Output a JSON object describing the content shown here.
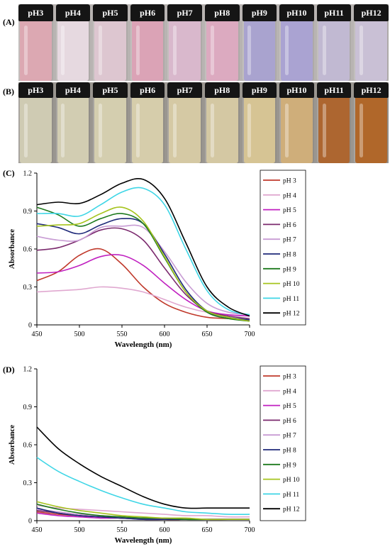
{
  "panels": {
    "a": "(A)",
    "b": "(B)",
    "c": "(C)",
    "d": "(D)"
  },
  "vials_a": [
    {
      "label": "pH3",
      "color": "#dca8b2"
    },
    {
      "label": "pH4",
      "color": "#e6d9e0"
    },
    {
      "label": "pH5",
      "color": "#ddc6d0"
    },
    {
      "label": "pH6",
      "color": "#dba3b6"
    },
    {
      "label": "pH7",
      "color": "#d9b8cc"
    },
    {
      "label": "pH8",
      "color": "#dcaac0"
    },
    {
      "label": "pH9",
      "color": "#a9a3cf"
    },
    {
      "label": "pH10",
      "color": "#aaa3d2"
    },
    {
      "label": "pH11",
      "color": "#c1b9d2"
    },
    {
      "label": "pH12",
      "color": "#c9c0d5"
    }
  ],
  "vials_b": [
    {
      "label": "pH3",
      "color": "#cfcbb3"
    },
    {
      "label": "pH4",
      "color": "#d2cdb2"
    },
    {
      "label": "pH5",
      "color": "#d4ceaf"
    },
    {
      "label": "pH6",
      "color": "#d6cdab"
    },
    {
      "label": "pH7",
      "color": "#d5c9a4"
    },
    {
      "label": "pH8",
      "color": "#d4c8a3"
    },
    {
      "label": "pH9",
      "color": "#d6c494"
    },
    {
      "label": "pH10",
      "color": "#cfae7a"
    },
    {
      "label": "pH11",
      "color": "#ad6630"
    },
    {
      "label": "pH12",
      "color": "#b0672a"
    }
  ],
  "chart_data": [
    {
      "type": "line",
      "xlabel": "Wavelength (nm)",
      "ylabel": "Absorbance",
      "xlim": [
        450,
        700
      ],
      "ylim": [
        0,
        1.2
      ],
      "xticks": [
        "450",
        "500",
        "550",
        "600",
        "650",
        "700"
      ],
      "yticks": [
        "0",
        "0.3",
        "0.6",
        "0.9",
        "1.2"
      ],
      "x": [
        450,
        475,
        500,
        525,
        550,
        575,
        600,
        625,
        650,
        675,
        700
      ],
      "series": [
        {
          "name": "pH 3",
          "color": "#c0392b",
          "values": [
            0.35,
            0.42,
            0.55,
            0.6,
            0.48,
            0.3,
            0.17,
            0.1,
            0.06,
            0.05,
            0.04
          ]
        },
        {
          "name": "pH 4",
          "color": "#e0a8d0",
          "values": [
            0.26,
            0.27,
            0.28,
            0.3,
            0.29,
            0.26,
            0.2,
            0.14,
            0.1,
            0.08,
            0.07
          ]
        },
        {
          "name": "pH 5",
          "color": "#c020c0",
          "values": [
            0.41,
            0.42,
            0.47,
            0.54,
            0.55,
            0.47,
            0.33,
            0.2,
            0.11,
            0.08,
            0.07
          ]
        },
        {
          "name": "pH 6",
          "color": "#7b2a6e",
          "values": [
            0.59,
            0.61,
            0.67,
            0.75,
            0.76,
            0.67,
            0.45,
            0.24,
            0.11,
            0.07,
            0.05
          ]
        },
        {
          "name": "pH 7",
          "color": "#c89cd4",
          "values": [
            0.7,
            0.67,
            0.67,
            0.77,
            0.78,
            0.77,
            0.58,
            0.34,
            0.17,
            0.1,
            0.08
          ]
        },
        {
          "name": "pH 8",
          "color": "#1f2a7a",
          "values": [
            0.8,
            0.77,
            0.72,
            0.79,
            0.84,
            0.8,
            0.56,
            0.28,
            0.11,
            0.06,
            0.04
          ]
        },
        {
          "name": "pH 9",
          "color": "#1e7a1e",
          "values": [
            0.93,
            0.87,
            0.78,
            0.84,
            0.88,
            0.8,
            0.53,
            0.26,
            0.1,
            0.05,
            0.03
          ]
        },
        {
          "name": "pH 10",
          "color": "#a6c41e",
          "values": [
            0.78,
            0.79,
            0.8,
            0.88,
            0.93,
            0.82,
            0.54,
            0.26,
            0.11,
            0.06,
            0.03
          ]
        },
        {
          "name": "pH 11",
          "color": "#3fd6e6",
          "values": [
            0.88,
            0.88,
            0.86,
            0.95,
            1.05,
            1.08,
            0.95,
            0.6,
            0.27,
            0.12,
            0.08
          ]
        },
        {
          "name": "pH 12",
          "color": "#000000",
          "values": [
            0.95,
            0.97,
            0.96,
            1.03,
            1.12,
            1.15,
            1.0,
            0.65,
            0.3,
            0.14,
            0.07
          ]
        }
      ]
    },
    {
      "type": "line",
      "xlabel": "Wavelength (nm)",
      "ylabel": "Absorbance",
      "xlim": [
        450,
        700
      ],
      "ylim": [
        0,
        1.2
      ],
      "xticks": [
        "450",
        "500",
        "550",
        "600",
        "650",
        "700"
      ],
      "yticks": [
        "0",
        "0.3",
        "0.6",
        "0.9",
        "1.2"
      ],
      "x": [
        450,
        475,
        500,
        525,
        550,
        575,
        600,
        625,
        650,
        675,
        700
      ],
      "series": [
        {
          "name": "pH 3",
          "color": "#c0392b",
          "values": [
            0.07,
            0.05,
            0.04,
            0.03,
            0.02,
            0.02,
            0.01,
            0.01,
            0.01,
            0.01,
            0.01
          ]
        },
        {
          "name": "pH 4",
          "color": "#e0a8d0",
          "values": [
            0.12,
            0.1,
            0.09,
            0.08,
            0.07,
            0.06,
            0.05,
            0.04,
            0.04,
            0.03,
            0.03
          ]
        },
        {
          "name": "pH 5",
          "color": "#c020c0",
          "values": [
            0.06,
            0.04,
            0.03,
            0.02,
            0.02,
            0.01,
            0.01,
            0.01,
            0.01,
            0.01,
            0.01
          ]
        },
        {
          "name": "pH 6",
          "color": "#7b2a6e",
          "values": [
            0.08,
            0.06,
            0.04,
            0.03,
            0.02,
            0.02,
            0.01,
            0.01,
            0.01,
            0.01,
            0.01
          ]
        },
        {
          "name": "pH 7",
          "color": "#c89cd4",
          "values": [
            0.09,
            0.07,
            0.05,
            0.04,
            0.03,
            0.02,
            0.02,
            0.02,
            0.01,
            0.01,
            0.01
          ]
        },
        {
          "name": "pH 8",
          "color": "#1f2a7a",
          "values": [
            0.1,
            0.06,
            0.04,
            0.03,
            0.02,
            0.01,
            0.01,
            0.01,
            0.01,
            0.01,
            0.01
          ]
        },
        {
          "name": "pH 9",
          "color": "#1e7a1e",
          "values": [
            0.13,
            0.09,
            0.06,
            0.04,
            0.03,
            0.02,
            0.02,
            0.01,
            0.01,
            0.01,
            0.01
          ]
        },
        {
          "name": "pH 10",
          "color": "#a6c41e",
          "values": [
            0.15,
            0.11,
            0.08,
            0.06,
            0.04,
            0.03,
            0.02,
            0.02,
            0.01,
            0.01,
            0.01
          ]
        },
        {
          "name": "pH 11",
          "color": "#3fd6e6",
          "values": [
            0.5,
            0.39,
            0.31,
            0.24,
            0.18,
            0.13,
            0.1,
            0.07,
            0.06,
            0.05,
            0.05
          ]
        },
        {
          "name": "pH 12",
          "color": "#000000",
          "values": [
            0.74,
            0.57,
            0.45,
            0.35,
            0.27,
            0.19,
            0.13,
            0.1,
            0.1,
            0.1,
            0.1
          ]
        }
      ]
    }
  ]
}
